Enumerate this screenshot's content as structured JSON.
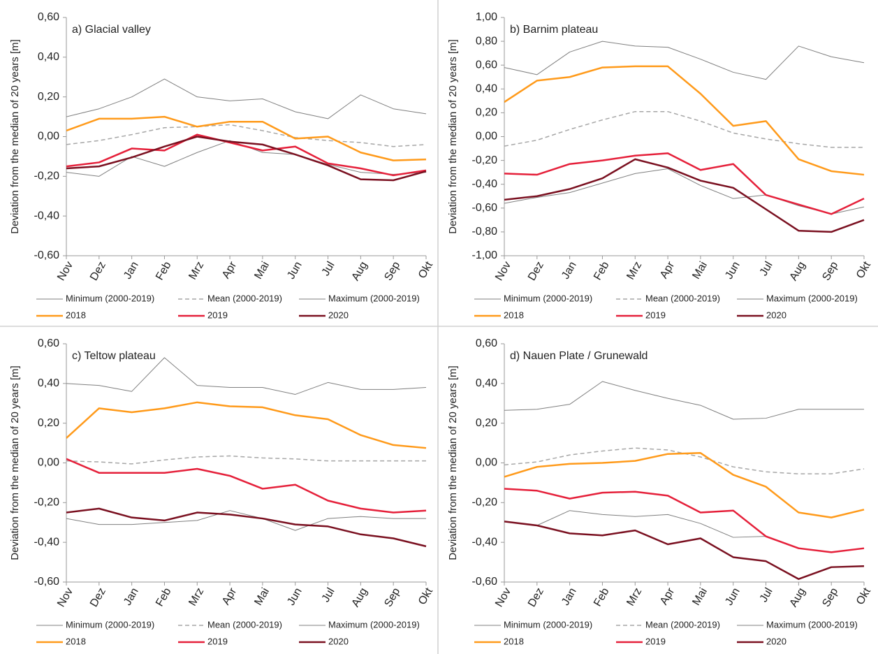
{
  "chart_data": [
    {
      "type": "line",
      "title": "a) Glacial valley",
      "y_label": "Deviation from the median of 20 years [m]",
      "categories": [
        "Nov",
        "Dez",
        "Jan",
        "Feb",
        "Mrz",
        "Apr",
        "Mai",
        "Jun",
        "Jul",
        "Aug",
        "Sep",
        "Okt"
      ],
      "ylim": [
        -0.6,
        0.6
      ],
      "yticks": [
        {
          "value": 0.6,
          "label": "0,60"
        },
        {
          "value": 0.4,
          "label": "0,40"
        },
        {
          "value": 0.2,
          "label": "0,20"
        },
        {
          "value": 0,
          "label": "0,00"
        },
        {
          "value": -0.2,
          "label": "-0,20"
        },
        {
          "value": -0.4,
          "label": "-0,40"
        },
        {
          "value": -0.6,
          "label": "-0,60"
        }
      ],
      "series": [
        {
          "name": "Minimum (2000-2019)",
          "color": "#7f7f7f",
          "dashed": false,
          "width": 1,
          "values": [
            -0.18,
            -0.2,
            -0.1,
            -0.15,
            -0.08,
            -0.02,
            -0.08,
            -0.09,
            -0.14,
            -0.18,
            -0.19,
            -0.18
          ]
        },
        {
          "name": "Mean (2000-2019)",
          "color": "#a6a6a6",
          "dashed": true,
          "width": 1.5,
          "values": [
            -0.04,
            -0.02,
            0.01,
            0.045,
            0.05,
            0.06,
            0.03,
            -0.005,
            -0.02,
            -0.03,
            -0.05,
            -0.04
          ]
        },
        {
          "name": "Maximum (2000-2019)",
          "color": "#7f7f7f",
          "dashed": false,
          "width": 1,
          "values": [
            0.1,
            0.14,
            0.2,
            0.29,
            0.2,
            0.18,
            0.19,
            0.125,
            0.09,
            0.21,
            0.14,
            0.115
          ]
        },
        {
          "name": "2018",
          "color": "#ff9a1a",
          "dashed": false,
          "width": 2.5,
          "values": [
            0.03,
            0.09,
            0.09,
            0.1,
            0.05,
            0.075,
            0.075,
            -0.01,
            0,
            -0.08,
            -0.12,
            -0.115
          ]
        },
        {
          "name": "2019",
          "color": "#e5203a",
          "dashed": false,
          "width": 2.5,
          "values": [
            -0.15,
            -0.13,
            -0.06,
            -0.07,
            0.01,
            -0.03,
            -0.07,
            -0.05,
            -0.135,
            -0.16,
            -0.195,
            -0.17
          ]
        },
        {
          "name": "2020",
          "color": "#7a1020",
          "dashed": false,
          "width": 2.5,
          "values": [
            -0.16,
            -0.15,
            -0.105,
            -0.05,
            0,
            -0.025,
            -0.04,
            -0.09,
            -0.145,
            -0.215,
            -0.22,
            -0.175
          ]
        }
      ]
    },
    {
      "type": "line",
      "title": "b) Barnim plateau",
      "y_label": "Deviation from the median of 20 years [m]",
      "categories": [
        "Nov",
        "Dez",
        "Jan",
        "Feb",
        "Mrz",
        "Apr",
        "Mai",
        "Jun",
        "Jul",
        "Aug",
        "Sep",
        "Okt"
      ],
      "ylim": [
        -1,
        1
      ],
      "yticks": [
        {
          "value": 1,
          "label": "1,00"
        },
        {
          "value": 0.8,
          "label": "0,80"
        },
        {
          "value": 0.6,
          "label": "0,60"
        },
        {
          "value": 0.4,
          "label": "0,40"
        },
        {
          "value": 0.2,
          "label": "0,20"
        },
        {
          "value": 0,
          "label": "0,00"
        },
        {
          "value": -0.2,
          "label": "-0,20"
        },
        {
          "value": -0.4,
          "label": "-0,40"
        },
        {
          "value": -0.6,
          "label": "-0,60"
        },
        {
          "value": -0.8,
          "label": "-0,80"
        },
        {
          "value": -1,
          "label": "-1,00"
        }
      ],
      "series": [
        {
          "name": "Minimum (2000-2019)",
          "color": "#7f7f7f",
          "dashed": false,
          "width": 1,
          "values": [
            -0.56,
            -0.51,
            -0.47,
            -0.39,
            -0.31,
            -0.27,
            -0.41,
            -0.52,
            -0.49,
            -0.58,
            -0.65,
            -0.59
          ]
        },
        {
          "name": "Mean (2000-2019)",
          "color": "#a6a6a6",
          "dashed": true,
          "width": 1.5,
          "values": [
            -0.08,
            -0.03,
            0.06,
            0.14,
            0.21,
            0.21,
            0.13,
            0.03,
            -0.02,
            -0.06,
            -0.09,
            -0.09
          ]
        },
        {
          "name": "Maximum (2000-2019)",
          "color": "#7f7f7f",
          "dashed": false,
          "width": 1,
          "values": [
            0.58,
            0.52,
            0.71,
            0.8,
            0.76,
            0.75,
            0.65,
            0.54,
            0.48,
            0.76,
            0.67,
            0.62
          ]
        },
        {
          "name": "2018",
          "color": "#ff9a1a",
          "dashed": false,
          "width": 2.5,
          "values": [
            0.29,
            0.47,
            0.5,
            0.58,
            0.59,
            0.59,
            0.36,
            0.09,
            0.13,
            -0.19,
            -0.29,
            -0.32
          ]
        },
        {
          "name": "2019",
          "color": "#e5203a",
          "dashed": false,
          "width": 2.5,
          "values": [
            -0.31,
            -0.32,
            -0.23,
            -0.2,
            -0.16,
            -0.14,
            -0.28,
            -0.23,
            -0.49,
            -0.57,
            -0.65,
            -0.52
          ]
        },
        {
          "name": "2020",
          "color": "#7a1020",
          "dashed": false,
          "width": 2.5,
          "values": [
            -0.53,
            -0.5,
            -0.44,
            -0.35,
            -0.19,
            -0.26,
            -0.37,
            -0.43,
            -0.61,
            -0.79,
            -0.8,
            -0.7
          ]
        }
      ]
    },
    {
      "type": "line",
      "title": "c) Teltow plateau",
      "y_label": "Deviation from the median of 20 years [m]",
      "categories": [
        "Nov",
        "Dez",
        "Jan",
        "Feb",
        "Mrz",
        "Apr",
        "Mai",
        "Jun",
        "Jul",
        "Aug",
        "Sep",
        "Okt"
      ],
      "ylim": [
        -0.6,
        0.6
      ],
      "yticks": [
        {
          "value": 0.6,
          "label": "0,60"
        },
        {
          "value": 0.4,
          "label": "0,40"
        },
        {
          "value": 0.2,
          "label": "0,20"
        },
        {
          "value": 0,
          "label": "0,00"
        },
        {
          "value": -0.2,
          "label": "-0,20"
        },
        {
          "value": -0.4,
          "label": "-0,40"
        },
        {
          "value": -0.6,
          "label": "-0,60"
        }
      ],
      "series": [
        {
          "name": "Minimum (2000-2019)",
          "color": "#7f7f7f",
          "dashed": false,
          "width": 1,
          "values": [
            -0.28,
            -0.31,
            -0.31,
            -0.3,
            -0.29,
            -0.24,
            -0.28,
            -0.34,
            -0.28,
            -0.27,
            -0.28,
            -0.28
          ]
        },
        {
          "name": "Mean (2000-2019)",
          "color": "#a6a6a6",
          "dashed": true,
          "width": 1.5,
          "values": [
            0.01,
            0.005,
            -0.005,
            0.015,
            0.03,
            0.035,
            0.025,
            0.02,
            0.01,
            0.01,
            0.01,
            0.01
          ]
        },
        {
          "name": "Maximum (2000-2019)",
          "color": "#7f7f7f",
          "dashed": false,
          "width": 1,
          "values": [
            0.4,
            0.39,
            0.36,
            0.53,
            0.39,
            0.38,
            0.38,
            0.345,
            0.405,
            0.37,
            0.37,
            0.38
          ]
        },
        {
          "name": "2018",
          "color": "#ff9a1a",
          "dashed": false,
          "width": 2.5,
          "values": [
            0.125,
            0.275,
            0.255,
            0.275,
            0.305,
            0.285,
            0.28,
            0.24,
            0.22,
            0.14,
            0.09,
            0.075
          ]
        },
        {
          "name": "2019",
          "color": "#e5203a",
          "dashed": false,
          "width": 2.5,
          "values": [
            0.02,
            -0.05,
            -0.05,
            -0.05,
            -0.03,
            -0.065,
            -0.13,
            -0.11,
            -0.19,
            -0.23,
            -0.25,
            -0.24
          ]
        },
        {
          "name": "2020",
          "color": "#7a1020",
          "dashed": false,
          "width": 2.5,
          "values": [
            -0.25,
            -0.23,
            -0.275,
            -0.29,
            -0.25,
            -0.26,
            -0.28,
            -0.31,
            -0.32,
            -0.36,
            -0.38,
            -0.42
          ]
        }
      ]
    },
    {
      "type": "line",
      "title": "d) Nauen Plate / Grunewald",
      "y_label": "Deviation from the median of 20 years [m]",
      "categories": [
        "Nov",
        "Dez",
        "Jan",
        "Feb",
        "Mrz",
        "Apr",
        "Mai",
        "Jun",
        "Jul",
        "Aug",
        "Sep",
        "Okt"
      ],
      "ylim": [
        -0.6,
        0.6
      ],
      "yticks": [
        {
          "value": 0.6,
          "label": "0,60"
        },
        {
          "value": 0.4,
          "label": "0,40"
        },
        {
          "value": 0.2,
          "label": "0,20"
        },
        {
          "value": 0,
          "label": "0,00"
        },
        {
          "value": -0.2,
          "label": "-0,20"
        },
        {
          "value": -0.4,
          "label": "-0,40"
        },
        {
          "value": -0.6,
          "label": "-0,60"
        }
      ],
      "series": [
        {
          "name": "Minimum (2000-2019)",
          "color": "#7f7f7f",
          "dashed": false,
          "width": 1,
          "values": [
            -0.295,
            -0.315,
            -0.24,
            -0.26,
            -0.27,
            -0.26,
            -0.305,
            -0.375,
            -0.37,
            -0.43,
            -0.45,
            -0.43
          ]
        },
        {
          "name": "Mean (2000-2019)",
          "color": "#a6a6a6",
          "dashed": true,
          "width": 1.5,
          "values": [
            -0.01,
            0.005,
            0.04,
            0.06,
            0.075,
            0.065,
            0.03,
            -0.02,
            -0.045,
            -0.055,
            -0.055,
            -0.03
          ]
        },
        {
          "name": "Maximum (2000-2019)",
          "color": "#7f7f7f",
          "dashed": false,
          "width": 1,
          "values": [
            0.265,
            0.27,
            0.295,
            0.41,
            0.365,
            0.325,
            0.29,
            0.22,
            0.225,
            0.27,
            0.27,
            0.27
          ]
        },
        {
          "name": "2018",
          "color": "#ff9a1a",
          "dashed": false,
          "width": 2.5,
          "values": [
            -0.07,
            -0.02,
            -0.005,
            0,
            0.01,
            0.045,
            0.05,
            -0.06,
            -0.12,
            -0.25,
            -0.275,
            -0.235
          ]
        },
        {
          "name": "2019",
          "color": "#e5203a",
          "dashed": false,
          "width": 2.5,
          "values": [
            -0.13,
            -0.14,
            -0.18,
            -0.15,
            -0.145,
            -0.165,
            -0.25,
            -0.24,
            -0.37,
            -0.43,
            -0.45,
            -0.43
          ]
        },
        {
          "name": "2020",
          "color": "#7a1020",
          "dashed": false,
          "width": 2.5,
          "values": [
            -0.295,
            -0.315,
            -0.355,
            -0.365,
            -0.34,
            -0.41,
            -0.38,
            -0.475,
            -0.495,
            -0.585,
            -0.525,
            -0.52
          ]
        }
      ]
    }
  ]
}
